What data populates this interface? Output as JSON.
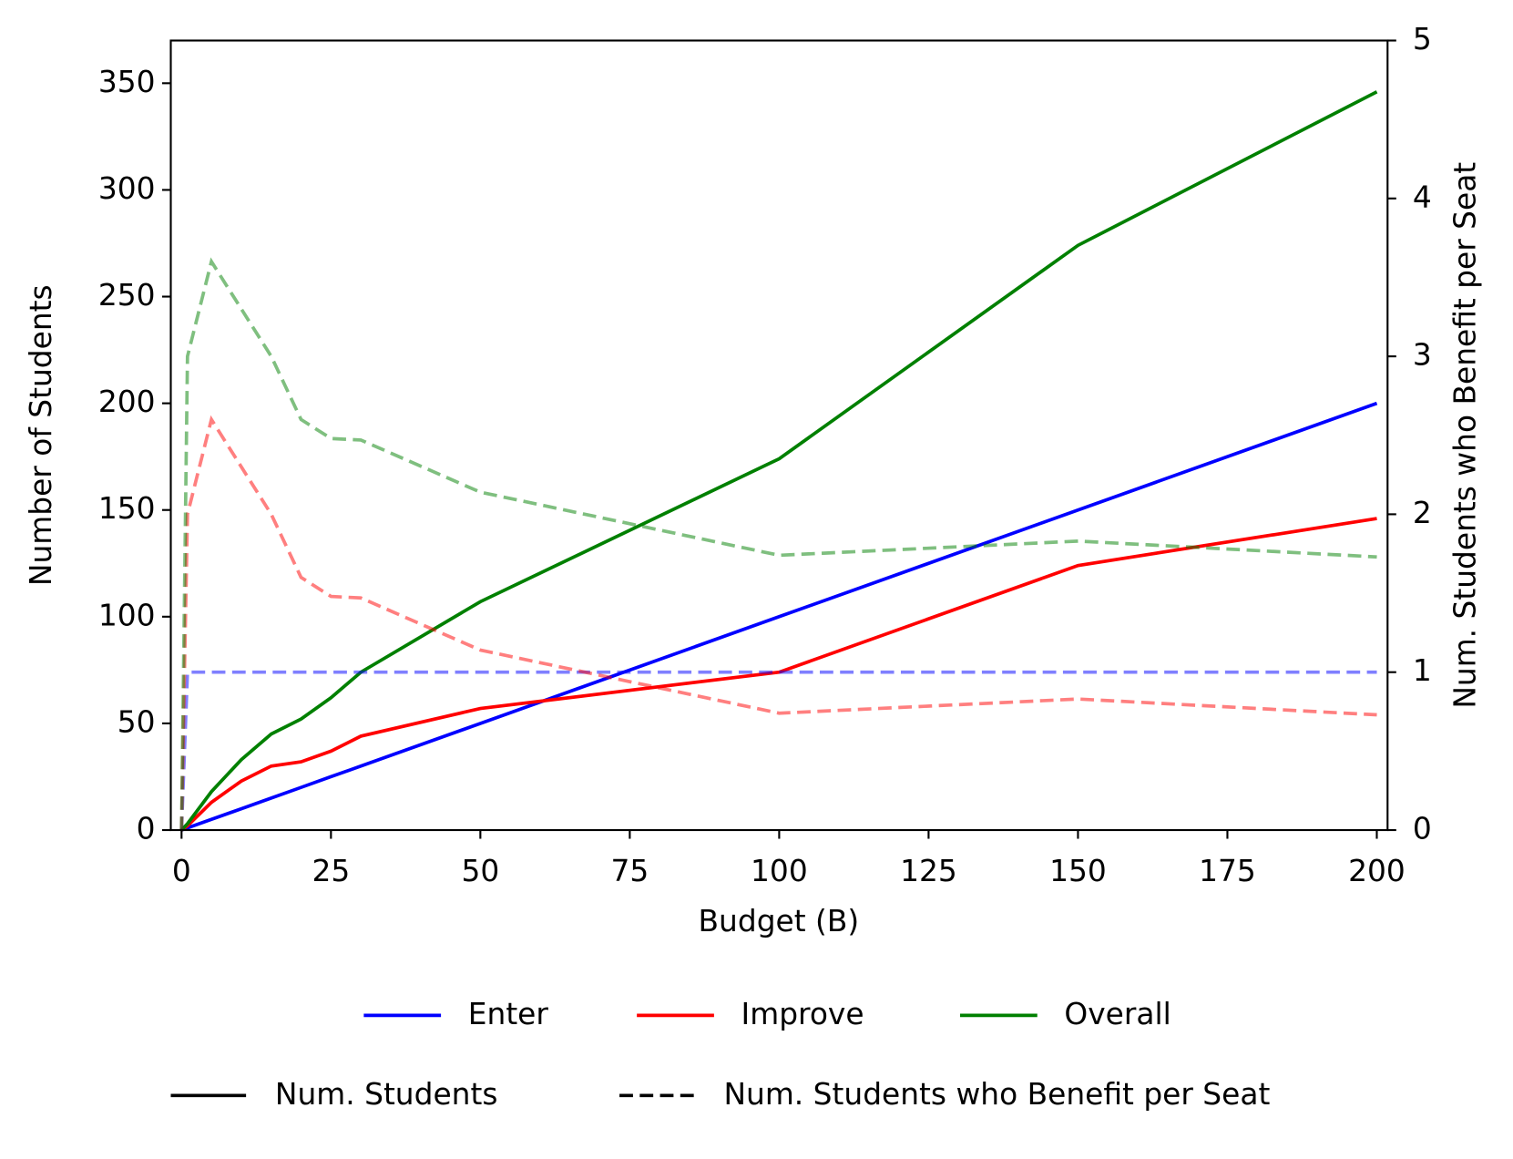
{
  "chart_data": {
    "type": "line",
    "x_label": "Budget (B)",
    "y_label": "Number of Students",
    "y2_label": "Num. Students who Benefit per Seat",
    "x": [
      0,
      1,
      5,
      10,
      15,
      20,
      25,
      30,
      50,
      100,
      150,
      200
    ],
    "xlim": [
      -1.8,
      201.8
    ],
    "xticks": [
      0,
      25,
      50,
      75,
      100,
      125,
      150,
      175,
      200
    ],
    "ylim": [
      0,
      370
    ],
    "yticks": [
      0,
      50,
      100,
      150,
      200,
      250,
      300,
      350
    ],
    "y2lim": [
      0,
      5
    ],
    "y2ticks": [
      0,
      1,
      2,
      3,
      4,
      5
    ],
    "series": [
      {
        "name": "Enter",
        "color": "#0000ff",
        "values": [
          0,
          1,
          5,
          10,
          15,
          20,
          25,
          30,
          50,
          100,
          150,
          200
        ]
      },
      {
        "name": "Improve",
        "color": "#ff0000",
        "values": [
          0,
          2,
          13,
          23,
          30,
          32,
          37,
          44,
          57,
          74,
          124,
          146
        ]
      },
      {
        "name": "Overall",
        "color": "#008000",
        "values": [
          0,
          3,
          18,
          33,
          45,
          52,
          62,
          74,
          107,
          174,
          274,
          346
        ]
      },
      {
        "color": "#0000ff",
        "axis": "y2",
        "dashed": true,
        "alpha": 0.5,
        "values": [
          0,
          1,
          1,
          1,
          1,
          1,
          1,
          1,
          1,
          1,
          1,
          1
        ]
      },
      {
        "color": "#ff0000",
        "axis": "y2",
        "dashed": true,
        "alpha": 0.5,
        "values": [
          0,
          2,
          2.6,
          2.3,
          2,
          1.6,
          1.48,
          1.47,
          1.14,
          0.74,
          0.83,
          0.73
        ]
      },
      {
        "color": "#008000",
        "axis": "y2",
        "dashed": true,
        "alpha": 0.5,
        "values": [
          0,
          3,
          3.6,
          3.3,
          3,
          2.6,
          2.48,
          2.47,
          2.14,
          1.74,
          1.83,
          1.73
        ]
      }
    ],
    "style_legend": [
      {
        "name": "Num. Students",
        "dashed": false
      },
      {
        "name": "Num. Students who Benefit per Seat",
        "dashed": true
      }
    ]
  }
}
